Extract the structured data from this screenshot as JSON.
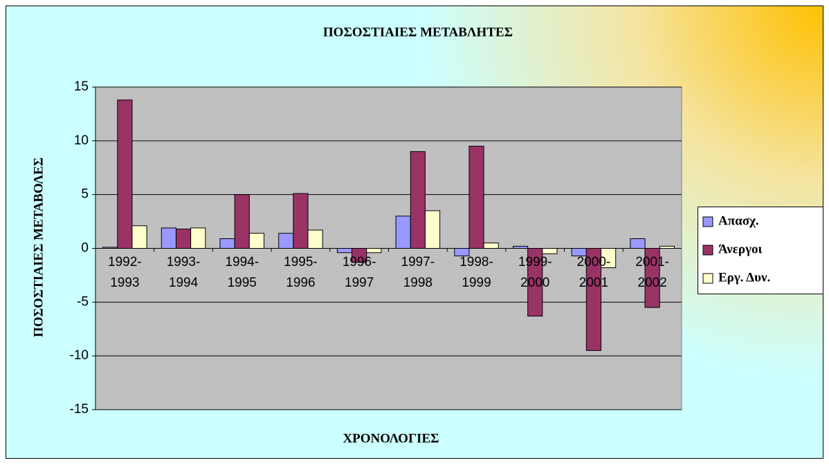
{
  "chart_data": {
    "type": "bar",
    "title": "ΠΟΣΟΣΤΙΑΙΕΣ ΜΕΤΑΒΛΗΤΕΣ",
    "x_label": "ΧΡΟΝΟΛΟΓΙΕΣ",
    "y_label": "ΠΟΣΟΣΤΙΑΙΕΣ ΜΕΤΑΒΟΛΕΣ",
    "categories": [
      "1992-1993",
      "1993-1994",
      "1994-1995",
      "1995-1996",
      "1996-1997",
      "1997-1998",
      "1998-1999",
      "1999-2000",
      "2000-2001",
      "2001-2002"
    ],
    "series": [
      {
        "name": "Απασχ.",
        "color": "#9999ff",
        "values": [
          0.1,
          1.9,
          0.9,
          1.4,
          -0.4,
          3.0,
          -0.7,
          0.2,
          -0.7,
          0.9
        ]
      },
      {
        "name": "Άνεργοι",
        "color": "#993366",
        "values": [
          13.8,
          1.8,
          5.0,
          5.1,
          -1.3,
          9.0,
          9.5,
          -6.3,
          -9.5,
          -5.5
        ]
      },
      {
        "name": "Εργ. Δυν.",
        "color": "#ffffcc",
        "values": [
          2.1,
          1.9,
          1.4,
          1.7,
          -0.4,
          3.5,
          0.5,
          -0.5,
          -1.8,
          0.2
        ]
      }
    ],
    "ylim": [
      -15,
      15
    ],
    "yticks": [
      -15,
      -10,
      -5,
      0,
      5,
      10,
      15
    ],
    "grid": true,
    "legend": "right"
  }
}
